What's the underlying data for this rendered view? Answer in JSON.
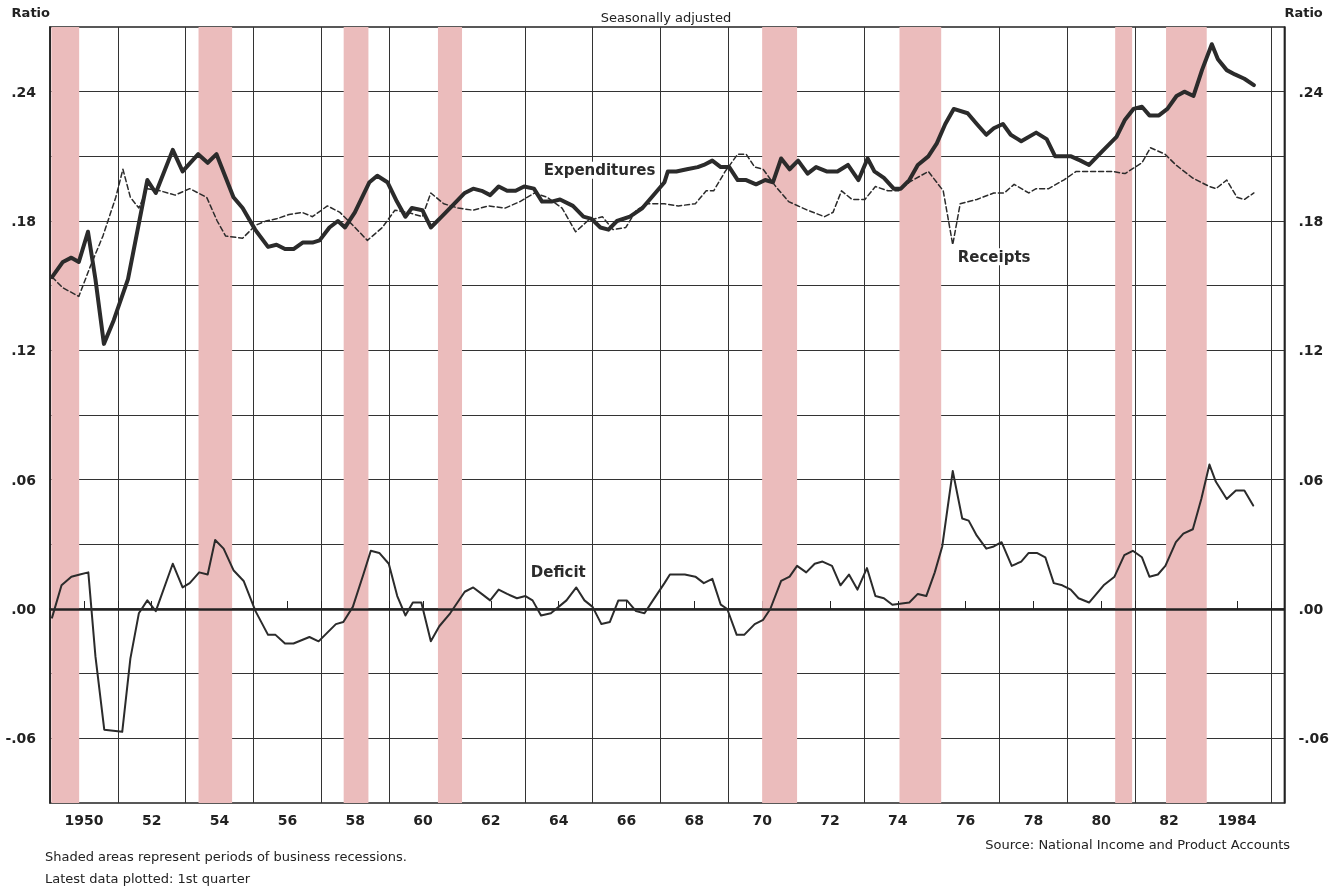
{
  "chart_data": {
    "type": "line",
    "title": "Seasonally adjusted",
    "ylabel": "Ratio",
    "y2label": "Ratio",
    "annotations": [
      "Source: National Income and Product Accounts",
      "Shaded areas represent periods of business recessions.",
      "Latest data plotted: 1st quarter"
    ],
    "xlim": [
      1949,
      1985.4
    ],
    "xticks": [
      {
        "value": 1949,
        "label": null
      },
      {
        "value": 1950,
        "label": "1950"
      },
      {
        "value": 1951,
        "label": null
      },
      {
        "value": 1952,
        "label": "52"
      },
      {
        "value": 1953,
        "label": null
      },
      {
        "value": 1954,
        "label": "54"
      },
      {
        "value": 1955,
        "label": null
      },
      {
        "value": 1956,
        "label": "56"
      },
      {
        "value": 1957,
        "label": null
      },
      {
        "value": 1958,
        "label": "58"
      },
      {
        "value": 1959,
        "label": null
      },
      {
        "value": 1960,
        "label": "60"
      },
      {
        "value": 1961,
        "label": null
      },
      {
        "value": 1962,
        "label": "62"
      },
      {
        "value": 1963,
        "label": null
      },
      {
        "value": 1964,
        "label": "64"
      },
      {
        "value": 1965,
        "label": null
      },
      {
        "value": 1966,
        "label": "66"
      },
      {
        "value": 1967,
        "label": null
      },
      {
        "value": 1968,
        "label": "68"
      },
      {
        "value": 1969,
        "label": null
      },
      {
        "value": 1970,
        "label": "70"
      },
      {
        "value": 1971,
        "label": null
      },
      {
        "value": 1972,
        "label": "72"
      },
      {
        "value": 1973,
        "label": null
      },
      {
        "value": 1974,
        "label": "74"
      },
      {
        "value": 1975,
        "label": null
      },
      {
        "value": 1976,
        "label": "76"
      },
      {
        "value": 1977,
        "label": null
      },
      {
        "value": 1978,
        "label": "78"
      },
      {
        "value": 1979,
        "label": null
      },
      {
        "value": 1980,
        "label": "80"
      },
      {
        "value": 1981,
        "label": null
      },
      {
        "value": 1982,
        "label": "82"
      },
      {
        "value": 1983,
        "label": null
      },
      {
        "value": 1984,
        "label": "1984"
      },
      {
        "value": 1985,
        "label": null
      }
    ],
    "ylim": [
      -0.09,
      0.27
    ],
    "yticks": [
      {
        "value": -0.06,
        "label": "-.06"
      },
      {
        "value": -0.03,
        "label": null
      },
      {
        "value": 0,
        "label": ".00"
      },
      {
        "value": 0.03,
        "label": null
      },
      {
        "value": 0.06,
        "label": ".06"
      },
      {
        "value": 0.09,
        "label": null
      },
      {
        "value": 0.12,
        "label": ".12"
      },
      {
        "value": 0.15,
        "label": null
      },
      {
        "value": 0.18,
        "label": ".18"
      },
      {
        "value": 0.21,
        "label": null
      },
      {
        "value": 0.24,
        "label": ".24"
      }
    ],
    "y2lim": [
      -0.09,
      0.27
    ],
    "y2ticks": [
      {
        "value": -0.06,
        "label": "-.06"
      },
      {
        "value": -0.03,
        "label": null
      },
      {
        "value": 0,
        "label": ".00"
      },
      {
        "value": 0.03,
        "label": null
      },
      {
        "value": 0.06,
        "label": ".06"
      },
      {
        "value": 0.09,
        "label": null
      },
      {
        "value": 0.12,
        "label": ".12"
      },
      {
        "value": 0.15,
        "label": null
      },
      {
        "value": 0.18,
        "label": ".18"
      },
      {
        "value": 0.21,
        "label": null
      },
      {
        "value": 0.24,
        "label": ".24"
      }
    ],
    "grid": true,
    "marker": "none",
    "ref_lines": [
      {
        "axis": "y",
        "value": 0,
        "color": "#222222",
        "line_style": "solid"
      }
    ],
    "bands": [
      {
        "axis": "x",
        "from": 1949.04,
        "to": 1949.86,
        "color": "#ebbcbc"
      },
      {
        "axis": "x",
        "from": 1953.38,
        "to": 1954.37,
        "color": "#ebbcbc"
      },
      {
        "axis": "x",
        "from": 1957.66,
        "to": 1958.39,
        "color": "#ebbcbc"
      },
      {
        "axis": "x",
        "from": 1960.44,
        "to": 1961.15,
        "color": "#ebbcbc"
      },
      {
        "axis": "x",
        "from": 1970.0,
        "to": 1971.03,
        "color": "#ebbcbc"
      },
      {
        "axis": "x",
        "from": 1974.05,
        "to": 1975.28,
        "color": "#ebbcbc"
      },
      {
        "axis": "x",
        "from": 1980.41,
        "to": 1980.91,
        "color": "#ebbcbc"
      },
      {
        "axis": "x",
        "from": 1981.91,
        "to": 1983.11,
        "color": "#ebbcbc"
      }
    ],
    "series": [
      {
        "name": "Expenditures",
        "color": "#2b2b2b",
        "line_style": "solid",
        "x": [
          1949.06,
          1949.38,
          1949.63,
          1949.85,
          1950.12,
          1950.34,
          1950.59,
          1950.88,
          1951.3,
          1951.87,
          1952.12,
          1952.62,
          1952.91,
          1953.37,
          1953.65,
          1953.91,
          1954.41,
          1954.68,
          1955.05,
          1955.43,
          1955.68,
          1955.93,
          1956.18,
          1956.45,
          1956.74,
          1956.95,
          1957.24,
          1957.49,
          1957.7,
          1957.99,
          1958.42,
          1958.65,
          1958.95,
          1959.23,
          1959.48,
          1959.67,
          1959.98,
          1960.23,
          1960.55,
          1960.86,
          1961.23,
          1961.48,
          1961.73,
          1961.98,
          1962.23,
          1962.48,
          1962.73,
          1962.98,
          1963.27,
          1963.51,
          1963.79,
          1964.04,
          1964.42,
          1964.73,
          1964.97,
          1965.23,
          1965.47,
          1965.72,
          1966.1,
          1966.47,
          1966.85,
          1967.12,
          1967.22,
          1967.47,
          1967.78,
          1968.1,
          1968.28,
          1968.53,
          1968.78,
          1969.03,
          1969.28,
          1969.53,
          1969.82,
          1970.09,
          1970.32,
          1970.56,
          1970.81,
          1971.06,
          1971.34,
          1971.59,
          1971.9,
          1972.22,
          1972.53,
          1972.84,
          1973.11,
          1973.31,
          1973.59,
          1973.88,
          1974.09,
          1974.34,
          1974.59,
          1974.9,
          1975.15,
          1975.4,
          1975.65,
          1976.06,
          1976.33,
          1976.61,
          1976.83,
          1977.1,
          1977.33,
          1977.64,
          1978.08,
          1978.39,
          1978.64,
          1979.11,
          1979.39,
          1979.64,
          1980.07,
          1980.45,
          1980.7,
          1980.95,
          1981.2,
          1981.42,
          1981.7,
          1981.95,
          1982.22,
          1982.45,
          1982.72,
          1982.97,
          1983.26,
          1983.44,
          1983.7,
          1983.94,
          1984.22,
          1984.5
        ],
        "values": [
          0.154,
          0.161,
          0.163,
          0.161,
          0.175,
          0.153,
          0.123,
          0.134,
          0.153,
          0.199,
          0.193,
          0.213,
          0.203,
          0.211,
          0.207,
          0.211,
          0.191,
          0.186,
          0.176,
          0.168,
          0.169,
          0.167,
          0.167,
          0.17,
          0.17,
          0.171,
          0.177,
          0.18,
          0.177,
          0.184,
          0.198,
          0.201,
          0.198,
          0.189,
          0.182,
          0.186,
          0.185,
          0.177,
          0.182,
          0.187,
          0.193,
          0.195,
          0.194,
          0.192,
          0.196,
          0.194,
          0.194,
          0.196,
          0.195,
          0.189,
          0.189,
          0.19,
          0.187,
          0.182,
          0.181,
          0.177,
          0.176,
          0.18,
          0.182,
          0.186,
          0.193,
          0.198,
          0.203,
          0.203,
          0.204,
          0.205,
          0.206,
          0.208,
          0.205,
          0.205,
          0.199,
          0.199,
          0.197,
          0.199,
          0.198,
          0.209,
          0.204,
          0.208,
          0.202,
          0.205,
          0.203,
          0.203,
          0.206,
          0.199,
          0.209,
          0.203,
          0.2,
          0.195,
          0.195,
          0.199,
          0.206,
          0.21,
          0.216,
          0.225,
          0.232,
          0.23,
          0.225,
          0.22,
          0.223,
          0.225,
          0.22,
          0.217,
          0.221,
          0.218,
          0.21,
          0.21,
          0.208,
          0.206,
          0.213,
          0.219,
          0.227,
          0.232,
          0.233,
          0.229,
          0.229,
          0.232,
          0.238,
          0.24,
          0.238,
          0.25,
          0.262,
          0.255,
          0.25,
          0.248,
          0.246,
          0.243
        ]
      },
      {
        "name": "Receipts",
        "color": "#2b2b2b",
        "line_style": "dashed",
        "x": [
          1949.06,
          1949.38,
          1949.85,
          1950.19,
          1950.56,
          1950.94,
          1951.15,
          1951.37,
          1951.62,
          1951.87,
          1952.25,
          1952.69,
          1953.12,
          1953.62,
          1953.93,
          1954.18,
          1954.68,
          1955.06,
          1955.37,
          1955.68,
          1956.05,
          1956.43,
          1956.74,
          1957.18,
          1957.55,
          1957.93,
          1958.36,
          1958.8,
          1959.17,
          1959.55,
          1959.98,
          1960.23,
          1960.61,
          1961.04,
          1961.48,
          1961.92,
          1962.42,
          1962.86,
          1963.29,
          1963.66,
          1964.1,
          1964.5,
          1964.85,
          1965.29,
          1965.6,
          1965.98,
          1966.29,
          1966.6,
          1967.12,
          1967.53,
          1968.03,
          1968.35,
          1968.57,
          1968.91,
          1969.28,
          1969.53,
          1969.78,
          1970.03,
          1970.4,
          1970.78,
          1971.34,
          1971.84,
          1972.09,
          1972.34,
          1972.65,
          1973.03,
          1973.34,
          1973.71,
          1974.02,
          1974.34,
          1974.9,
          1975.34,
          1975.62,
          1975.84,
          1976.33,
          1976.83,
          1977.14,
          1977.43,
          1977.86,
          1978.08,
          1978.45,
          1978.89,
          1979.26,
          1979.7,
          1980.33,
          1980.7,
          1981.2,
          1981.45,
          1981.88,
          1982.2,
          1982.69,
          1983.19,
          1983.38,
          1983.7,
          1984.0,
          1984.22,
          1984.5
        ],
        "values": [
          0.154,
          0.149,
          0.145,
          0.159,
          0.173,
          0.191,
          0.204,
          0.191,
          0.186,
          0.195,
          0.194,
          0.192,
          0.195,
          0.191,
          0.18,
          0.173,
          0.172,
          0.178,
          0.18,
          0.181,
          0.183,
          0.184,
          0.182,
          0.187,
          0.184,
          0.178,
          0.171,
          0.177,
          0.185,
          0.184,
          0.182,
          0.193,
          0.188,
          0.186,
          0.185,
          0.187,
          0.186,
          0.189,
          0.193,
          0.191,
          0.186,
          0.175,
          0.18,
          0.182,
          0.176,
          0.177,
          0.185,
          0.188,
          0.188,
          0.187,
          0.188,
          0.194,
          0.194,
          0.203,
          0.211,
          0.211,
          0.205,
          0.204,
          0.196,
          0.189,
          0.185,
          0.182,
          0.184,
          0.194,
          0.19,
          0.19,
          0.196,
          0.194,
          0.194,
          0.198,
          0.203,
          0.194,
          0.169,
          0.188,
          0.19,
          0.193,
          0.193,
          0.197,
          0.193,
          0.195,
          0.195,
          0.199,
          0.203,
          0.203,
          0.203,
          0.202,
          0.207,
          0.214,
          0.211,
          0.206,
          0.2,
          0.196,
          0.195,
          0.199,
          0.191,
          0.19,
          0.193
        ]
      },
      {
        "name": "Deficit",
        "color": "#2b2b2b",
        "line_style": "solid",
        "x": [
          1949.06,
          1949.34,
          1949.63,
          1949.88,
          1950.13,
          1950.34,
          1950.6,
          1951.13,
          1951.37,
          1951.62,
          1951.87,
          1952.12,
          1952.62,
          1952.91,
          1953.12,
          1953.4,
          1953.65,
          1953.87,
          1954.12,
          1954.41,
          1954.71,
          1955.06,
          1955.43,
          1955.65,
          1955.93,
          1956.18,
          1956.65,
          1956.92,
          1957.43,
          1957.65,
          1957.93,
          1958.24,
          1958.46,
          1958.71,
          1958.99,
          1959.24,
          1959.48,
          1959.7,
          1959.95,
          1960.23,
          1960.48,
          1960.8,
          1961.23,
          1961.48,
          1961.73,
          1961.98,
          1962.23,
          1962.48,
          1962.77,
          1963.02,
          1963.23,
          1963.48,
          1963.77,
          1964.23,
          1964.52,
          1964.76,
          1965.0,
          1965.26,
          1965.51,
          1965.76,
          1966.01,
          1966.28,
          1966.53,
          1966.78,
          1967.12,
          1967.28,
          1967.72,
          1968.03,
          1968.28,
          1968.53,
          1968.78,
          1968.97,
          1969.25,
          1969.47,
          1969.78,
          1970.03,
          1970.24,
          1970.56,
          1970.81,
          1971.03,
          1971.3,
          1971.55,
          1971.78,
          1972.06,
          1972.31,
          1972.56,
          1972.81,
          1973.09,
          1973.34,
          1973.59,
          1973.84,
          1974.34,
          1974.59,
          1974.84,
          1975.09,
          1975.31,
          1975.62,
          1975.9,
          1976.09,
          1976.33,
          1976.61,
          1976.83,
          1977.06,
          1977.36,
          1977.64,
          1977.86,
          1978.1,
          1978.35,
          1978.6,
          1978.85,
          1979.1,
          1979.33,
          1979.64,
          1980.07,
          1980.39,
          1980.68,
          1980.93,
          1981.2,
          1981.42,
          1981.67,
          1981.89,
          1982.2,
          1982.42,
          1982.7,
          1982.95,
          1983.19,
          1983.38,
          1983.7,
          1983.97,
          1984.22,
          1984.48
        ],
        "values": [
          -0.004,
          0.011,
          0.015,
          0.016,
          0.017,
          -0.022,
          -0.056,
          -0.057,
          -0.023,
          -0.002,
          0.004,
          -0.001,
          0.021,
          0.01,
          0.012,
          0.017,
          0.016,
          0.032,
          0.028,
          0.018,
          0.013,
          -0.001,
          -0.012,
          -0.012,
          -0.016,
          -0.016,
          -0.013,
          -0.015,
          -0.007,
          -0.006,
          0.001,
          0.016,
          0.027,
          0.026,
          0.021,
          0.006,
          -0.003,
          0.003,
          0.003,
          -0.015,
          -0.008,
          -0.002,
          0.008,
          0.01,
          0.007,
          0.004,
          0.009,
          0.007,
          0.005,
          0.006,
          0.004,
          -0.003,
          -0.002,
          0.004,
          0.01,
          0.004,
          0.001,
          -0.007,
          -0.006,
          0.004,
          0.004,
          -0.001,
          -0.002,
          0.004,
          0.012,
          0.016,
          0.016,
          0.015,
          0.012,
          0.014,
          0.002,
          0.0,
          -0.012,
          -0.012,
          -0.007,
          -0.005,
          0.0,
          0.013,
          0.015,
          0.02,
          0.017,
          0.021,
          0.022,
          0.02,
          0.011,
          0.016,
          0.009,
          0.019,
          0.006,
          0.005,
          0.002,
          0.003,
          0.007,
          0.006,
          0.017,
          0.029,
          0.064,
          0.042,
          0.041,
          0.034,
          0.028,
          0.029,
          0.031,
          0.02,
          0.022,
          0.026,
          0.026,
          0.024,
          0.012,
          0.011,
          0.009,
          0.005,
          0.003,
          0.011,
          0.015,
          0.025,
          0.027,
          0.024,
          0.015,
          0.016,
          0.02,
          0.031,
          0.035,
          0.037,
          0.051,
          0.067,
          0.059,
          0.051,
          0.055,
          0.055,
          0.048
        ]
      }
    ]
  }
}
